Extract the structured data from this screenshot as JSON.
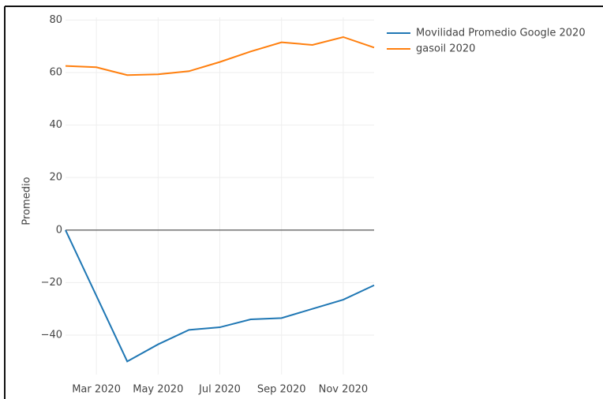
{
  "chart_data": {
    "type": "line",
    "y_label": "Promedio",
    "x": [
      "2020-02",
      "2020-03",
      "2020-04",
      "2020-05",
      "2020-06",
      "2020-07",
      "2020-08",
      "2020-09",
      "2020-10",
      "2020-11",
      "2020-12"
    ],
    "xlim": [
      "2020-02",
      "2020-12"
    ],
    "xticks": [
      {
        "value": "2020-03",
        "label": "Mar 2020"
      },
      {
        "value": "2020-05",
        "label": "May 2020"
      },
      {
        "value": "2020-07",
        "label": "Jul 2020"
      },
      {
        "value": "2020-09",
        "label": "Sep 2020"
      },
      {
        "value": "2020-11",
        "label": "Nov 2020"
      }
    ],
    "ylim": [
      -55,
      81
    ],
    "yticks": [
      {
        "value": -40,
        "label": "−40"
      },
      {
        "value": -20,
        "label": "−20"
      },
      0,
      20,
      40,
      60,
      80
    ],
    "grid": true,
    "zero_line": true,
    "legend": "right",
    "series": [
      {
        "name": "Movilidad Promedio Google 2020",
        "color": "#1f77b4",
        "values": [
          0,
          -25,
          -50,
          -43.5,
          -38,
          -37,
          -34,
          -33.5,
          -30,
          -26.5,
          -21
        ]
      },
      {
        "name": "gasoil 2020",
        "color": "#ff7f0e",
        "values": [
          62.5,
          62,
          59,
          59.3,
          60.5,
          64,
          68,
          71.5,
          70.5,
          73.5,
          69.5
        ]
      }
    ]
  }
}
